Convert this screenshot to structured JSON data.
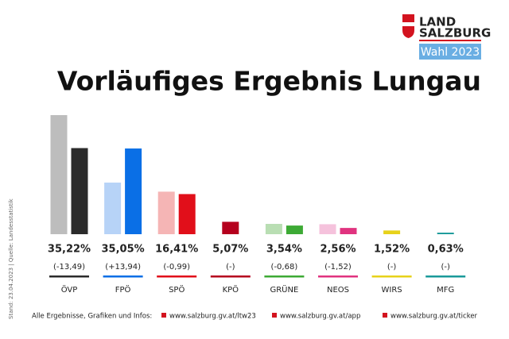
{
  "brand": {
    "line1": "LAND",
    "line2": "SALZBURG",
    "badge": "Wahl 2023"
  },
  "side_note": "Stand: 23.04.2023 | Quelle: Landesstatistik",
  "footer": {
    "intro": "Alle Ergebnisse, Grafiken und Infos:",
    "links": [
      "www.salzburg.gv.at/ltw23",
      "www.salzburg.gv.at/app",
      "www.salzburg.gv.at/ticker"
    ]
  },
  "chart_data": {
    "type": "bar",
    "title": "Vorläufiges Ergebnis Lungau",
    "categories": [
      "ÖVP",
      "FPÖ",
      "SPÖ",
      "KPÖ",
      "GRÜNE",
      "NEOS",
      "WIRS",
      "MFG"
    ],
    "category_colors": [
      "#2b2b2b",
      "#0a6fe6",
      "#e10f1a",
      "#b5001d",
      "#3daa35",
      "#e0337f",
      "#e7d21a",
      "#1a9a9a"
    ],
    "series": [
      {
        "values": [
          48.71,
          21.11,
          17.4,
          null,
          4.22,
          4.08,
          null,
          null
        ],
        "colors": [
          "#bdbdbd",
          "#b7d3f7",
          "#f5b5b5",
          null,
          "#b9deb3",
          "#f5c2dc",
          null,
          null
        ]
      },
      {
        "values": [
          35.22,
          35.05,
          16.41,
          5.07,
          3.54,
          2.56,
          1.52,
          0.63
        ],
        "value_labels": [
          "35,22%",
          "35,05%",
          "16,41%",
          "5,07%",
          "3,54%",
          "2,56%",
          "1,52%",
          "0,63%"
        ],
        "colors": [
          "#2b2b2b",
          "#0a6fe6",
          "#e10f1a",
          "#b5001d",
          "#3daa35",
          "#e0337f",
          "#e7d21a",
          "#1a9a9a"
        ]
      }
    ],
    "change_labels": [
      "(-13,49)",
      "(+13,94)",
      "(-0,99)",
      "(-)",
      "(-0,68)",
      "(-1,52)",
      "(-)",
      "(-)"
    ],
    "ylim": [
      0,
      50
    ]
  }
}
